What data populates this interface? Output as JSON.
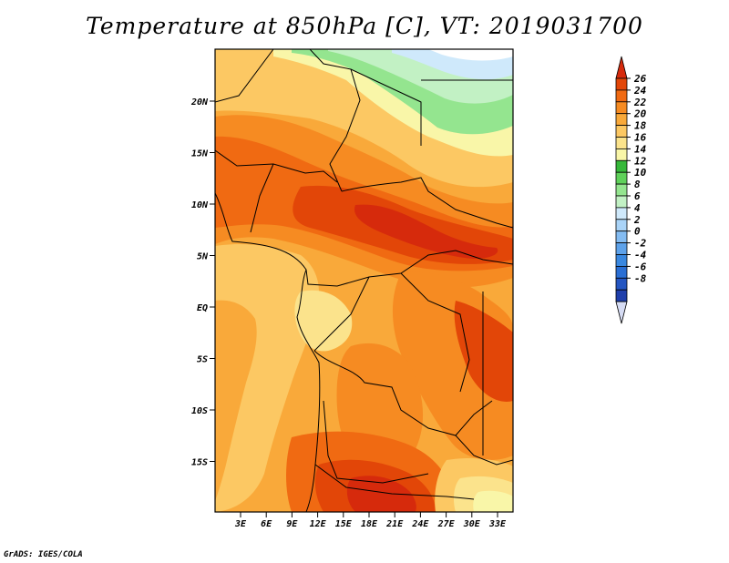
{
  "title": "Temperature at 850hPa [C], VT: 2019031700",
  "credit": "GrADS: IGES/COLA",
  "map": {
    "lat_labels": [
      "20N",
      "15N",
      "10N",
      "5N",
      "EQ",
      "5S",
      "10S",
      "15S"
    ],
    "lon_labels": [
      "3E",
      "6E",
      "9E",
      "12E",
      "15E",
      "18E",
      "21E",
      "24E",
      "27E",
      "30E",
      "33E"
    ]
  },
  "colorbar": {
    "labels": [
      "26",
      "24",
      "22",
      "20",
      "18",
      "16",
      "14",
      "12",
      "10",
      "8",
      "6",
      "4",
      "2",
      "0",
      "-2",
      "-4",
      "-6",
      "-8"
    ],
    "colors_bottom_to_top": [
      "#1b1d7c",
      "#1f3fab",
      "#2456c2",
      "#2a6fd4",
      "#3a88e0",
      "#5ea2ea",
      "#84bcf2",
      "#aad4f8",
      "#cfe9fb",
      "#c2f1c4",
      "#94e58f",
      "#5fd15a",
      "#36b83a",
      "#f9f6a8",
      "#fbe38c",
      "#fcc863",
      "#f9a93a",
      "#f68b22",
      "#f06a12",
      "#e24608",
      "#d62a0c"
    ],
    "top_arrow_color": "#d62a0c",
    "bottom_arrow_color": "#d6dcf4"
  }
}
